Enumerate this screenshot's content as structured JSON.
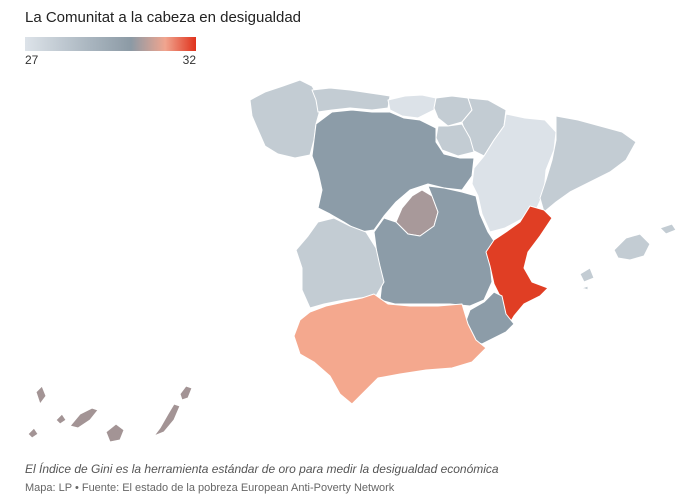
{
  "title": "La Comunitat a la cabeza en desigualdad",
  "legend": {
    "min_label": "27",
    "max_label": "32"
  },
  "colors": {
    "very_low": "#dce2e8",
    "low": "#c3ccd3",
    "mid": "#8c9ca8",
    "madrid": "#a8999a",
    "canarias": "#a39495",
    "andalucia": "#f4a88e",
    "high": "#e03e24"
  },
  "regions": [
    {
      "id": "galicia",
      "tone": "low"
    },
    {
      "id": "asturias",
      "tone": "low"
    },
    {
      "id": "cantabria",
      "tone": "very_low"
    },
    {
      "id": "pais-vasco",
      "tone": "low"
    },
    {
      "id": "navarra",
      "tone": "low"
    },
    {
      "id": "la-rioja",
      "tone": "low"
    },
    {
      "id": "aragon",
      "tone": "very_low"
    },
    {
      "id": "cataluna",
      "tone": "low"
    },
    {
      "id": "castilla-y-leon",
      "tone": "mid"
    },
    {
      "id": "madrid",
      "tone": "madrid"
    },
    {
      "id": "castilla-la-mancha",
      "tone": "mid"
    },
    {
      "id": "extremadura",
      "tone": "low"
    },
    {
      "id": "comunitat-valenciana",
      "tone": "high"
    },
    {
      "id": "murcia",
      "tone": "mid"
    },
    {
      "id": "andalucia",
      "tone": "andalucia"
    },
    {
      "id": "baleares",
      "tone": "low"
    },
    {
      "id": "canarias",
      "tone": "canarias"
    }
  ],
  "note": "El Índice de Gini es la herramienta estándar de oro para medir la desigualdad económica",
  "source": "Mapa: LP • Fuente: El estado de la pobreza European Anti-Poverty Network"
}
